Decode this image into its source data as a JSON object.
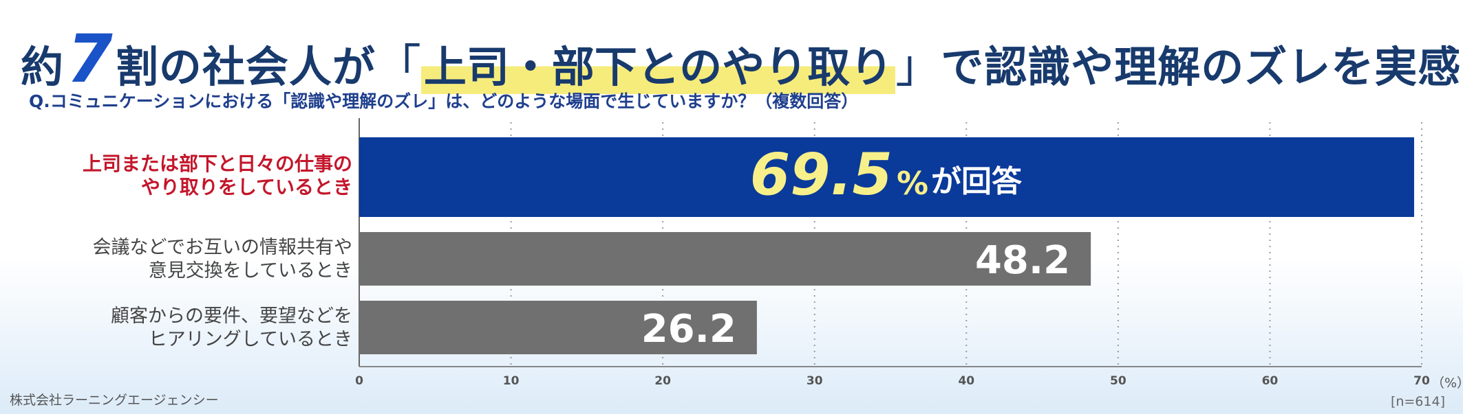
{
  "title": {
    "part1": "約",
    "big": "7",
    "part2": "割の社会人が",
    "bracket_open": "「",
    "highlight": "上司・部下とのやり取り",
    "bracket_close": "」",
    "part3": "で認識や理解のズレを実感！"
  },
  "subtitle": "Q.コミュニケーションにおける「認識や理解のズレ」は、どのような場面で生じていますか？（複数回答）",
  "chart_data": {
    "type": "bar",
    "orientation": "horizontal",
    "categories": [
      [
        "上司または部下と日々の仕事の",
        "やり取りをしているとき"
      ],
      [
        "会議などでお互いの情報共有や",
        "意見交換をしているとき"
      ],
      [
        "顧客からの要件、要望などを",
        "ヒアリングしているとき"
      ]
    ],
    "values": [
      69.5,
      48.2,
      26.2
    ],
    "value_labels": [
      "69.5",
      "48.2",
      "26.2"
    ],
    "top_label_suffix_pct": "%",
    "top_label_suffix": "が回答",
    "xlim": [
      0,
      70
    ],
    "xticks": [
      "0",
      "10",
      "20",
      "30",
      "40",
      "50",
      "60",
      "70"
    ],
    "x_unit": "（%）",
    "grid": "dotted-vertical",
    "colors": {
      "highlight_bar": "#0a3a9a",
      "bar": "#707070",
      "highlight_value": "#f7f08a",
      "value": "#ffffff",
      "highlight_category": "#c3162b"
    }
  },
  "footer": {
    "company": "株式会社ラーニングエージェンシー",
    "sample": "[n=614]"
  }
}
